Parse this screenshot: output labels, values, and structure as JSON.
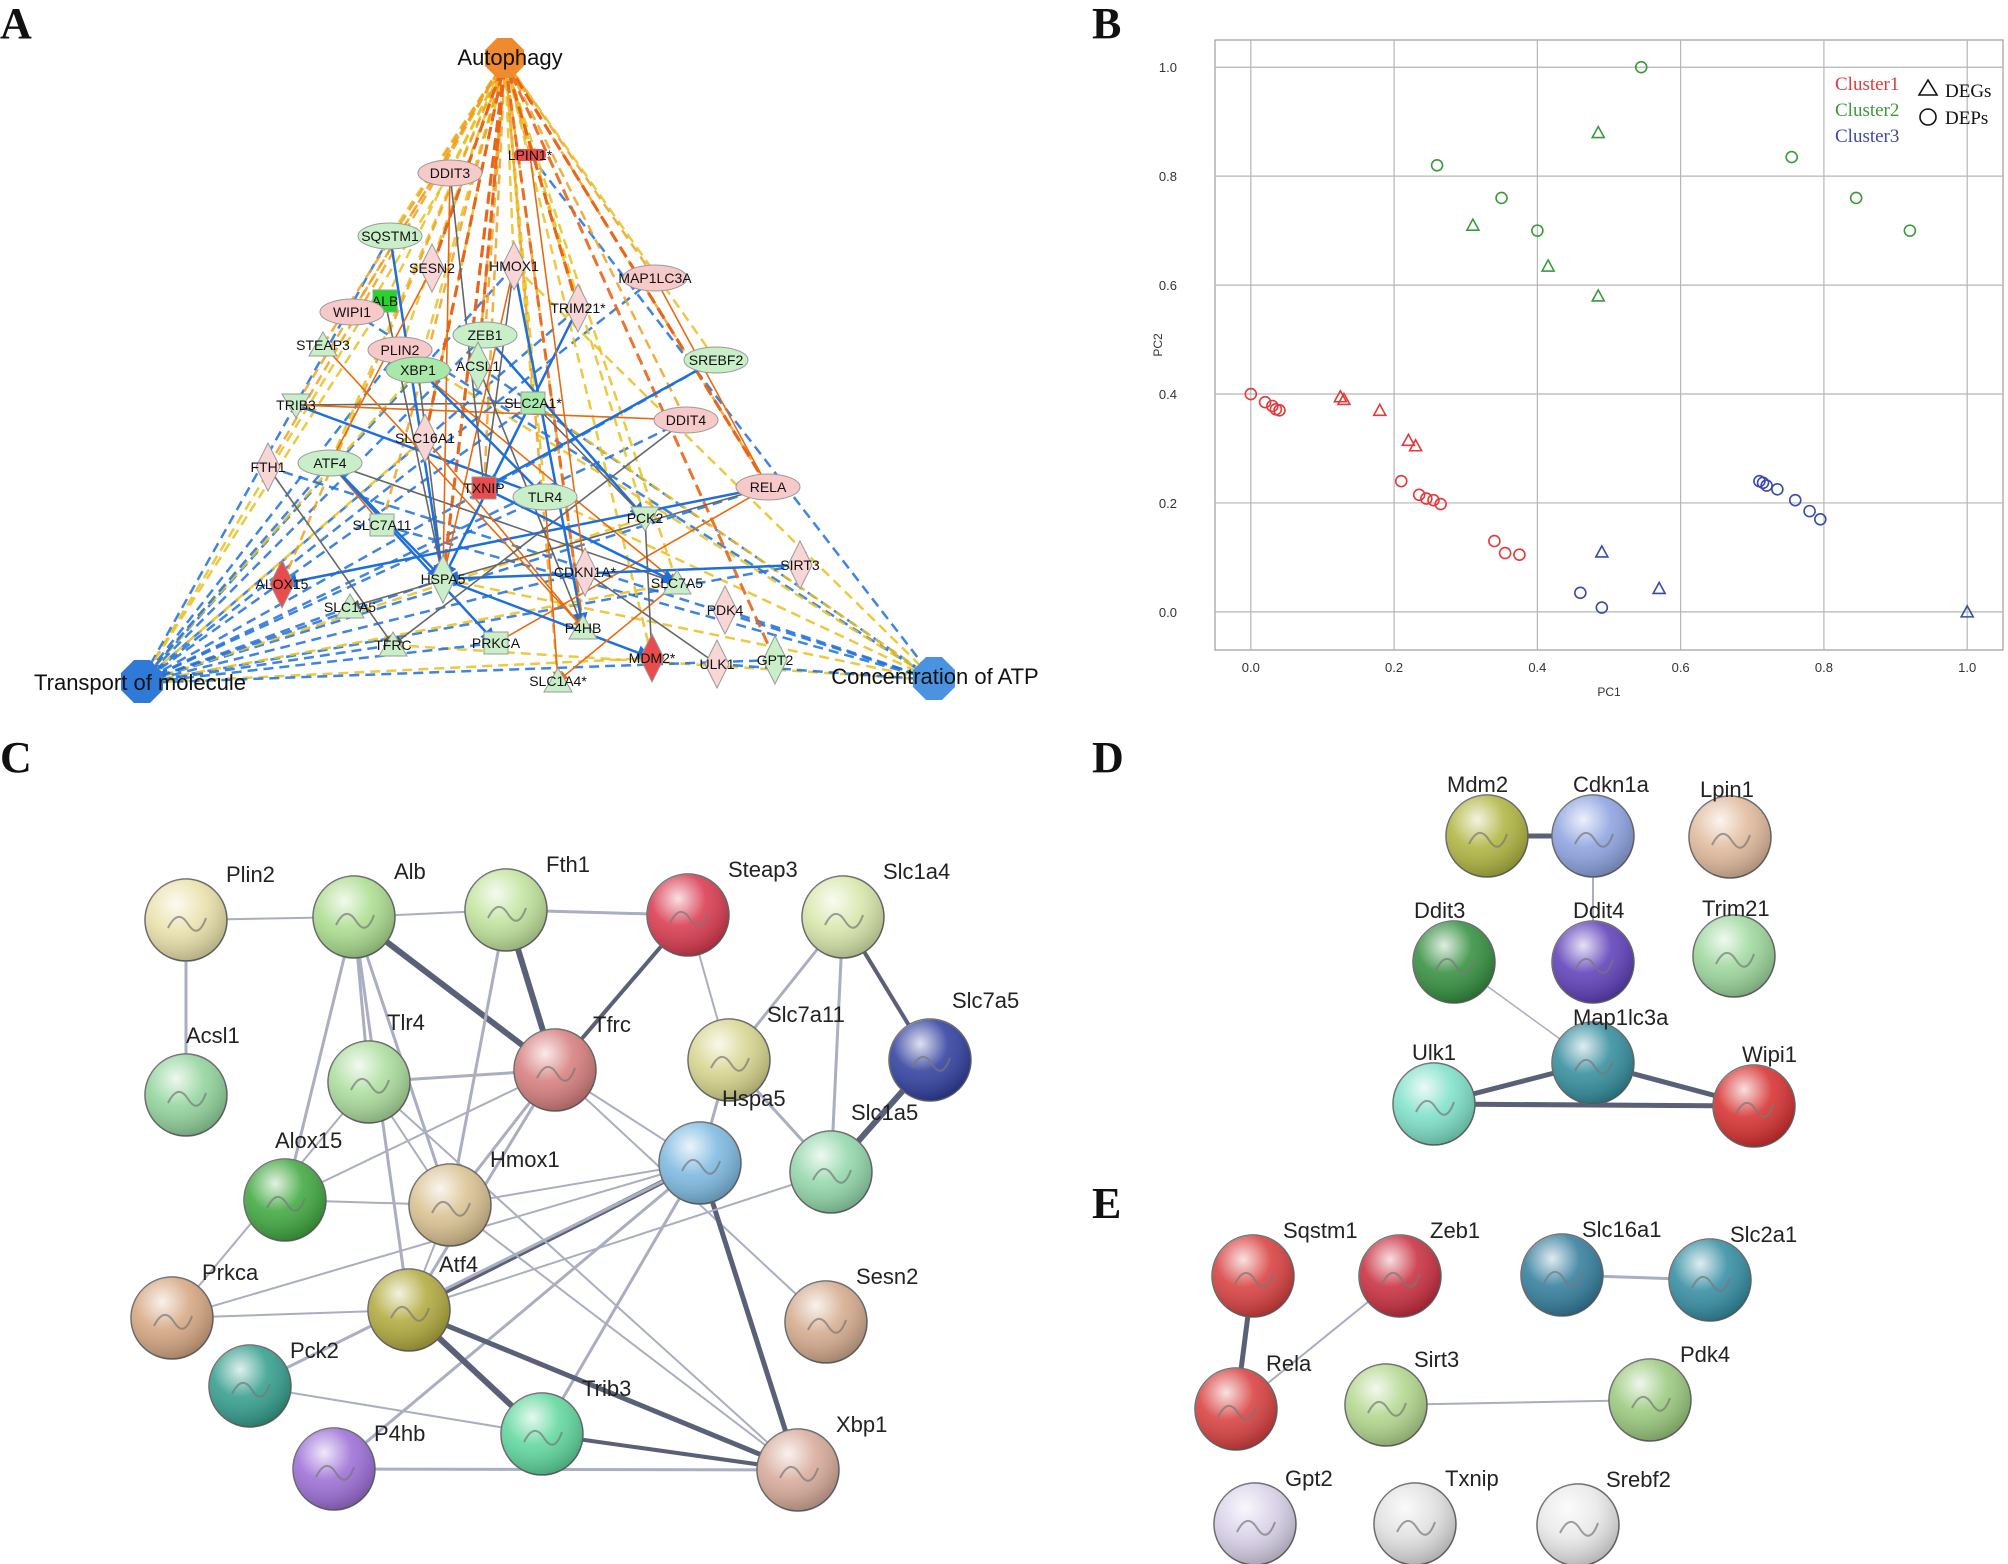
{
  "panels": {
    "a": "A",
    "b": "B",
    "c": "C",
    "d": "D",
    "e": "E"
  },
  "network_a": {
    "hubs": [
      "Autophagy",
      "Transport of molecule",
      "Concentration of ATP"
    ],
    "genes": [
      "DDIT3",
      "LPIN1*",
      "SQSTM1",
      "SESN2",
      "HMOX1",
      "MAP1LC3A",
      "ALB",
      "WIPI1",
      "TRIM21*",
      "STEAP3",
      "PLIN2",
      "ZEB1",
      "XBP1",
      "ACSL1",
      "SREBF2",
      "TRIB3",
      "SLC2A1*",
      "DDIT4",
      "SLC16A1",
      "FTH1",
      "ATF4",
      "TXNIP",
      "TLR4",
      "RELA",
      "PCK2",
      "SLC7A11",
      "SIRT3",
      "ALOX15",
      "HSPA5",
      "CDKN1A*",
      "SLC7A5",
      "PDK4",
      "SLC1A5",
      "P4HB",
      "TFRC",
      "PRKCA",
      "MDM2*",
      "ULK1",
      "GPT2",
      "SLC1A4*"
    ]
  },
  "chart_data": {
    "type": "scatter",
    "title": "",
    "xlabel": "PC1",
    "ylabel": "PC2",
    "xlim": [
      -0.05,
      1.05
    ],
    "ylim": [
      -0.07,
      1.05
    ],
    "xticks": [
      "0.0",
      "0.2",
      "0.4",
      "0.6",
      "0.8",
      "1.0"
    ],
    "yticks": [
      "0.0",
      "0.2",
      "0.4",
      "0.6",
      "0.8",
      "1.0"
    ],
    "grid": true,
    "legend_position": "top-right",
    "legend_clusters": [
      "Cluster1",
      "Cluster2",
      "Cluster3"
    ],
    "legend_markers": [
      "DEGs",
      "DEPs"
    ],
    "colors": {
      "Cluster1": "#e03a3a",
      "Cluster2": "#3a9a3a",
      "Cluster3": "#3a4aa8"
    },
    "series": [
      {
        "name": "Cluster1",
        "marker": "circle",
        "x": [
          0.0,
          0.02,
          0.03,
          0.035,
          0.04,
          0.21,
          0.235,
          0.245,
          0.255,
          0.265,
          0.34,
          0.355,
          0.375
        ],
        "y": [
          0.4,
          0.385,
          0.378,
          0.372,
          0.37,
          0.24,
          0.215,
          0.208,
          0.205,
          0.198,
          0.13,
          0.108,
          0.105
        ]
      },
      {
        "name": "Cluster1",
        "marker": "triangle",
        "x": [
          0.125,
          0.13,
          0.18,
          0.22,
          0.23
        ],
        "y": [
          0.395,
          0.39,
          0.37,
          0.315,
          0.305
        ]
      },
      {
        "name": "Cluster2",
        "marker": "circle",
        "x": [
          0.26,
          0.35,
          0.4,
          0.545,
          0.755,
          0.845,
          0.92
        ],
        "y": [
          0.82,
          0.76,
          0.7,
          1.0,
          0.835,
          0.76,
          0.7
        ]
      },
      {
        "name": "Cluster2",
        "marker": "triangle",
        "x": [
          0.31,
          0.415,
          0.485,
          0.485
        ],
        "y": [
          0.71,
          0.635,
          0.88,
          0.58
        ]
      },
      {
        "name": "Cluster3",
        "marker": "circle",
        "x": [
          0.46,
          0.49,
          0.71,
          0.715,
          0.72,
          0.735,
          0.76,
          0.78,
          0.795
        ],
        "y": [
          0.035,
          0.008,
          0.24,
          0.237,
          0.232,
          0.225,
          0.205,
          0.185,
          0.17
        ]
      },
      {
        "name": "Cluster3",
        "marker": "triangle",
        "x": [
          0.49,
          0.57,
          1.0
        ],
        "y": [
          0.11,
          0.043,
          0.0
        ]
      }
    ]
  },
  "network_c": {
    "proteins": [
      "Plin2",
      "Alb",
      "Fth1",
      "Steap3",
      "Slc1a4",
      "Acsl1",
      "Tlr4",
      "Tfrc",
      "Slc7a11",
      "Slc7a5",
      "Alox15",
      "Hmox1",
      "Hspa5",
      "Slc1a5",
      "Prkca",
      "Atf4",
      "Sesn2",
      "Pck2",
      "Trib3",
      "P4hb",
      "Xbp1"
    ]
  },
  "network_d": {
    "proteins": [
      "Mdm2",
      "Cdkn1a",
      "Lpin1",
      "Ddit3",
      "Ddit4",
      "Trim21",
      "Map1lc3a",
      "Ulk1",
      "Wipi1"
    ]
  },
  "network_e": {
    "proteins": [
      "Sqstm1",
      "Zeb1",
      "Slc16a1",
      "Slc2a1",
      "Rela",
      "Sirt3",
      "Pdk4",
      "Gpt2",
      "Txnip",
      "Srebf2"
    ]
  }
}
